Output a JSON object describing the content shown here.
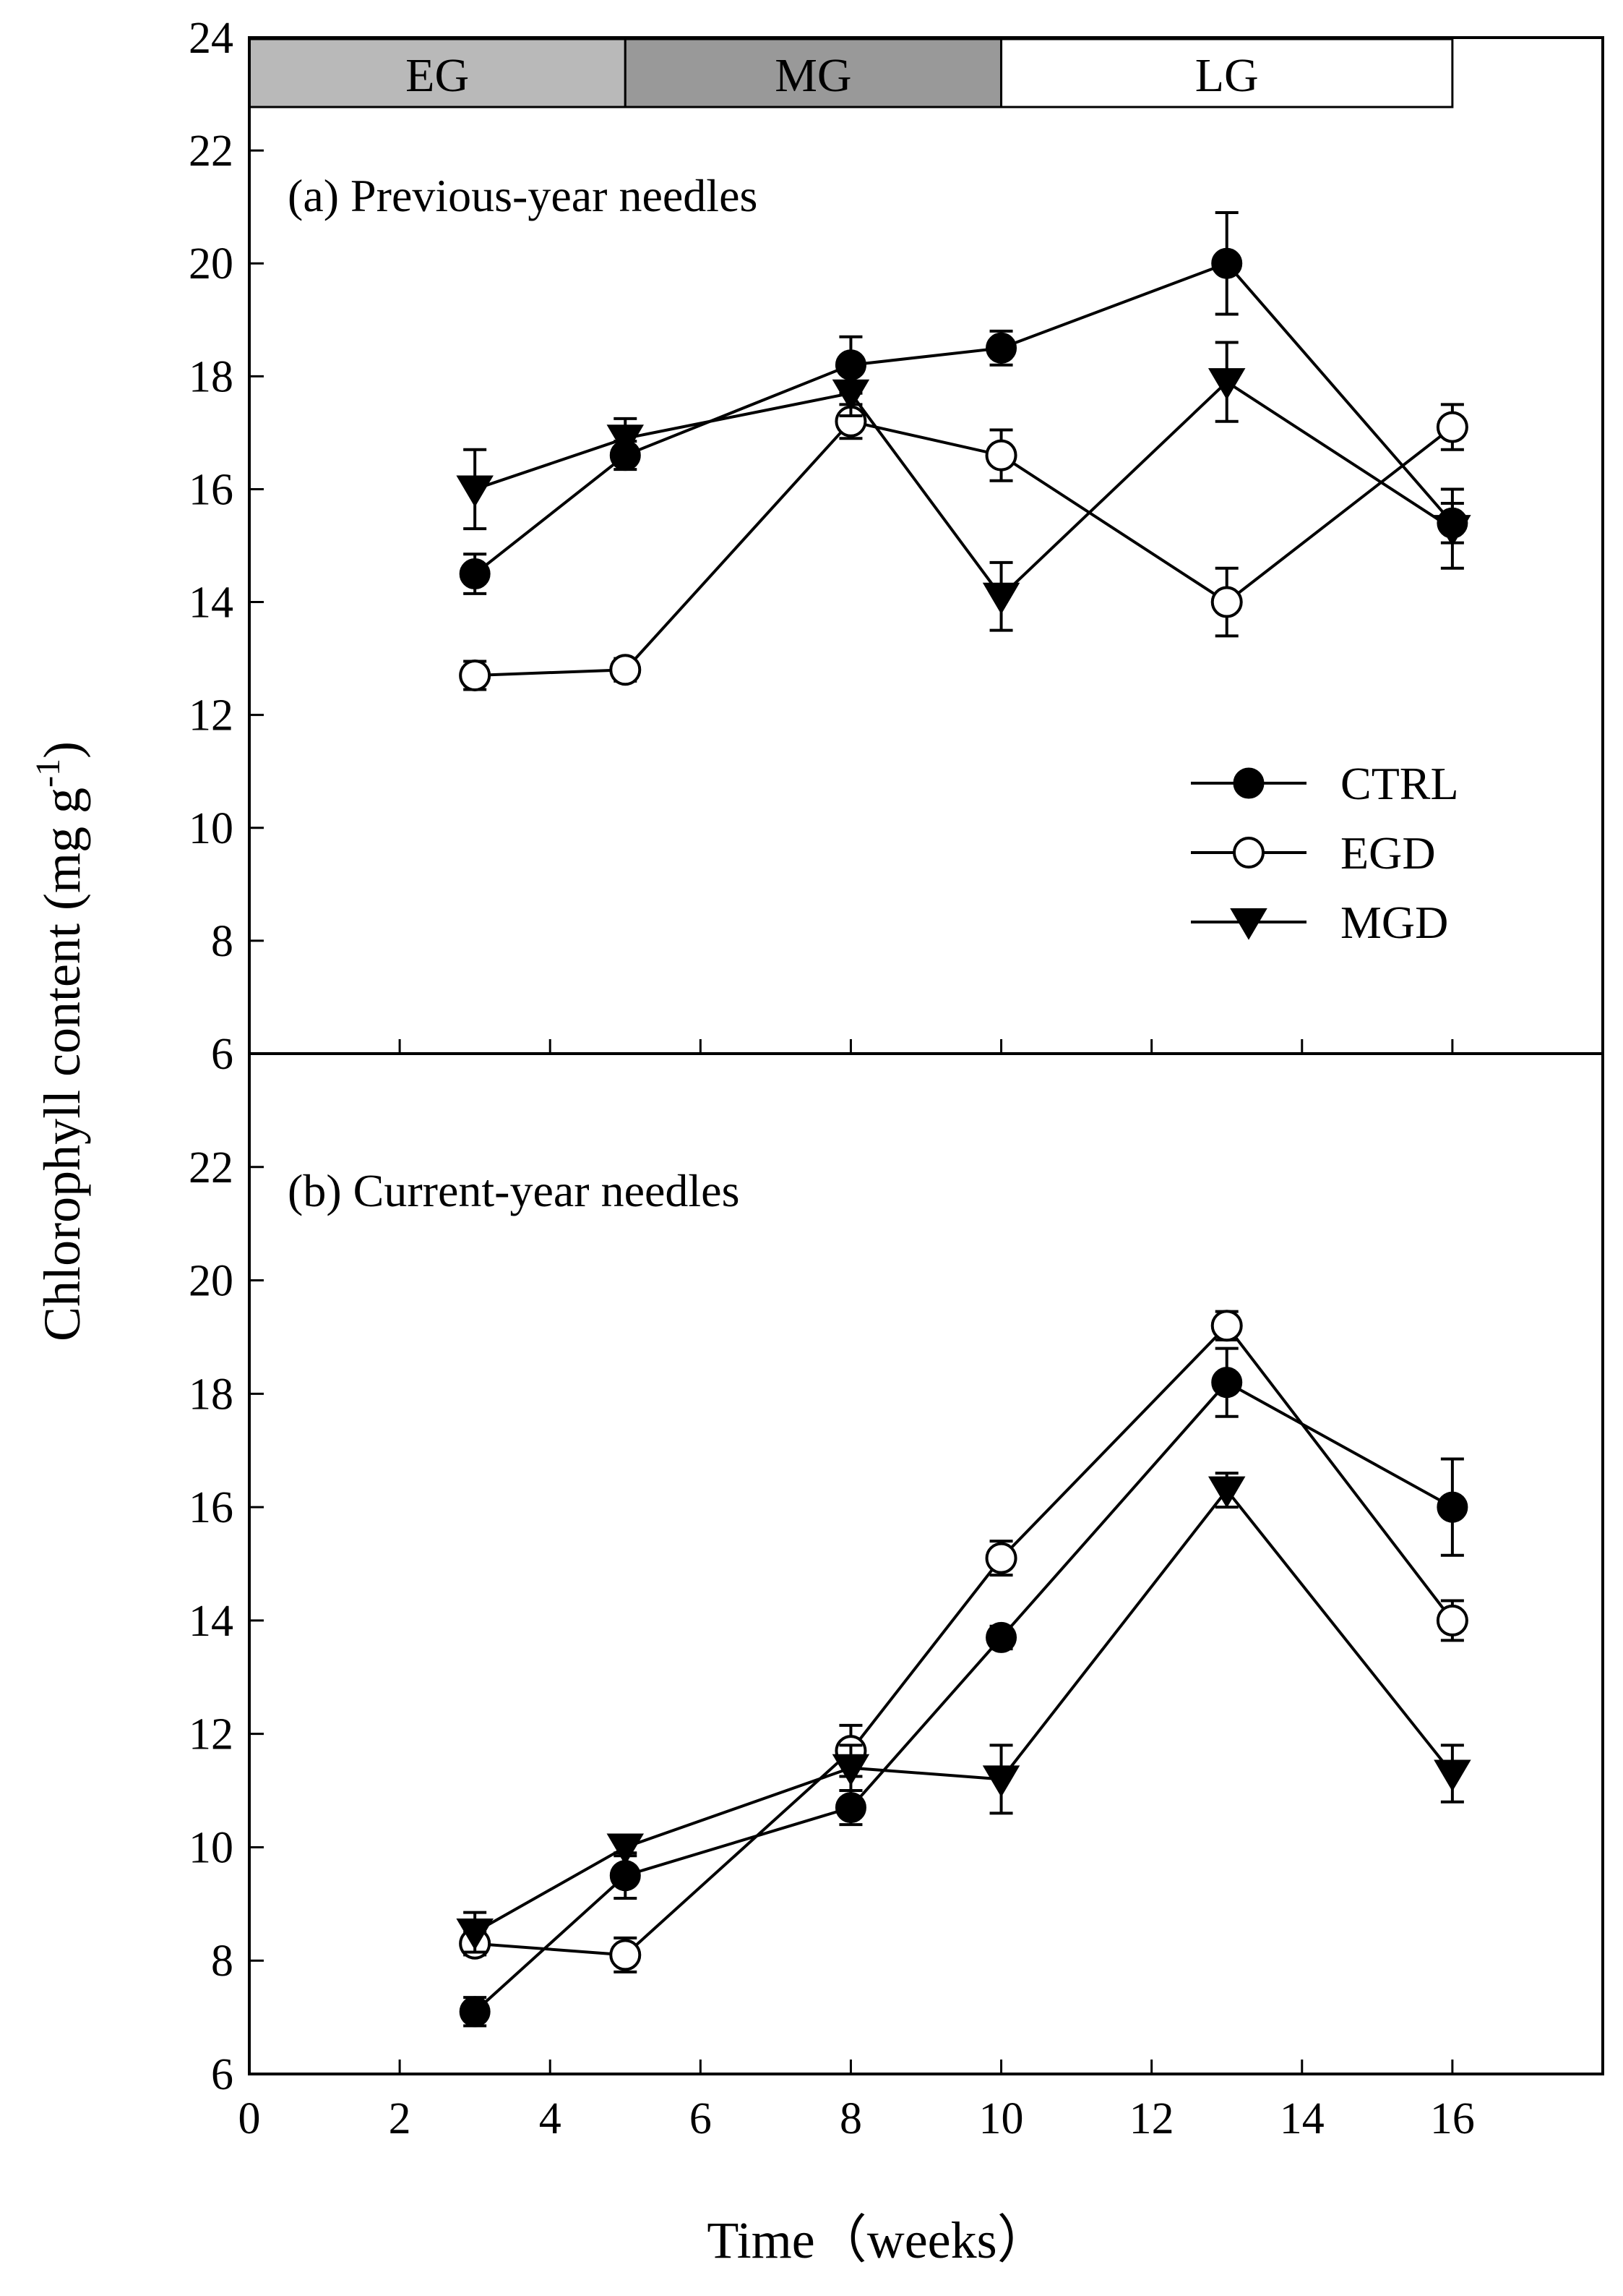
{
  "chart_data": {
    "type": "line",
    "xlabel": "Time（weeks）",
    "ylabel": "Chlorophyll content (mg g",
    "ylabel_superscript": "-1",
    "ylabel_close": ")",
    "xlim": [
      0,
      18
    ],
    "ylim": [
      6,
      24
    ],
    "x_ticks": [
      "0",
      "2",
      "4",
      "6",
      "8",
      "10",
      "12",
      "14",
      "16"
    ],
    "y_ticks": [
      "6",
      "8",
      "10",
      "12",
      "14",
      "16",
      "18",
      "20",
      "22",
      "24"
    ],
    "phases": [
      {
        "label": "EG",
        "x_start": 0,
        "x_end": 5,
        "color": "#b9b9b9"
      },
      {
        "label": "MG",
        "x_start": 5,
        "x_end": 10,
        "color": "#999999"
      },
      {
        "label": "LG",
        "x_start": 10,
        "x_end": 16,
        "color": "#ffffff"
      }
    ],
    "legend": {
      "position": "right"
    },
    "panels": [
      {
        "label": "(a) Previous-year needles",
        "x": [
          3,
          5,
          8,
          10,
          13,
          16
        ],
        "series": [
          {
            "name": "CTRL",
            "marker": "filled-circle",
            "values": [
              14.5,
              16.6,
              18.2,
              18.5,
              20.0,
              15.4
            ],
            "errors": [
              0.35,
              0.25,
              0.5,
              0.3,
              0.9,
              0.35
            ]
          },
          {
            "name": "EGD",
            "marker": "open-circle",
            "values": [
              12.7,
              12.8,
              17.2,
              16.6,
              14.0,
              17.1
            ],
            "errors": [
              0.25,
              0.2,
              0.3,
              0.45,
              0.6,
              0.4
            ]
          },
          {
            "name": "MGD",
            "marker": "filled-triangle-down",
            "values": [
              16.0,
              16.9,
              17.7,
              14.1,
              17.9,
              15.3
            ],
            "errors": [
              0.7,
              0.35,
              0.4,
              0.6,
              0.7,
              0.7
            ]
          }
        ]
      },
      {
        "label": "(b) Current-year needles",
        "x": [
          3,
          5,
          8,
          10,
          13,
          16
        ],
        "series": [
          {
            "name": "CTRL",
            "marker": "filled-circle",
            "values": [
              7.1,
              9.5,
              10.7,
              13.7,
              18.2,
              16.0
            ],
            "errors": [
              0.25,
              0.4,
              0.3,
              0.2,
              0.6,
              0.85
            ]
          },
          {
            "name": "EGD",
            "marker": "open-circle",
            "values": [
              8.3,
              8.1,
              11.7,
              15.1,
              19.2,
              14.0
            ],
            "errors": [
              0.2,
              0.3,
              0.45,
              0.3,
              0.25,
              0.35
            ]
          },
          {
            "name": "MGD",
            "marker": "filled-triangle-down",
            "values": [
              8.5,
              10.0,
              11.4,
              11.2,
              16.3,
              11.3
            ],
            "errors": [
              0.35,
              0.15,
              0.4,
              0.6,
              0.3,
              0.5
            ]
          }
        ]
      }
    ]
  }
}
